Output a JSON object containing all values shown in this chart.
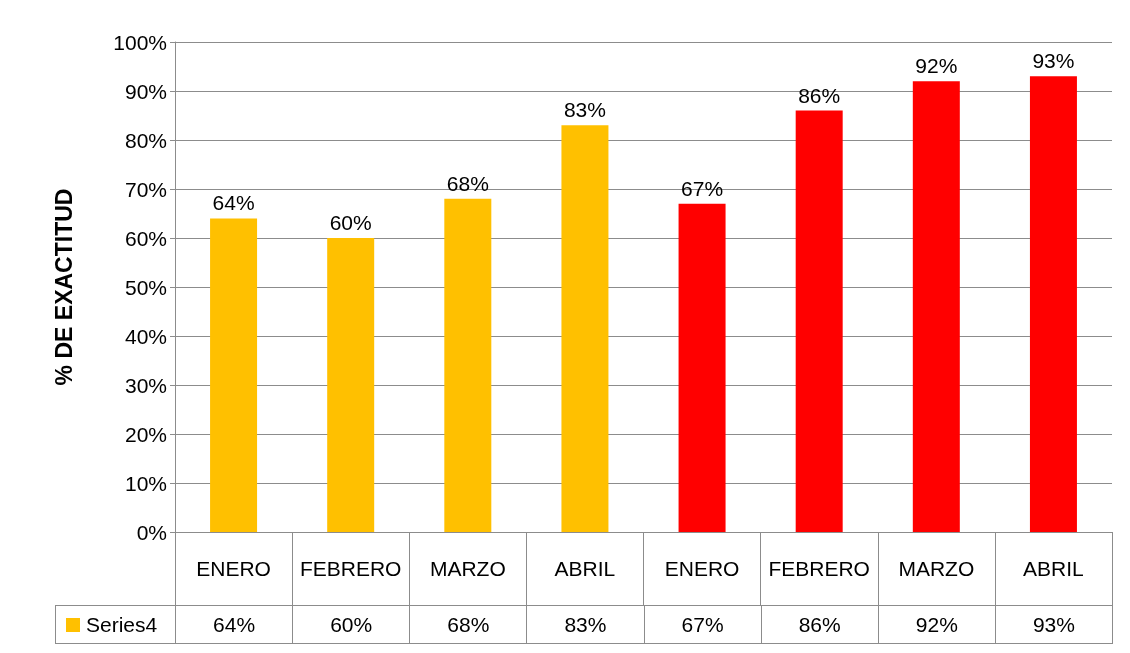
{
  "chart_data": {
    "type": "bar",
    "ylabel": "% DE EXACTITUD",
    "categories": [
      "ENERO",
      "FEBRERO",
      "MARZO",
      "ABRIL",
      "ENERO",
      "FEBRERO",
      "MARZO",
      "ABRIL"
    ],
    "series": [
      {
        "name": "Series4",
        "colors": [
          "#ffc000",
          "#ffc000",
          "#ffc000",
          "#ffc000",
          "#ff0000",
          "#ff0000",
          "#ff0000",
          "#ff0000"
        ],
        "values": [
          64,
          60,
          68,
          83,
          67,
          86,
          92,
          93
        ],
        "value_labels": [
          "64%",
          "60%",
          "68%",
          "83%",
          "67%",
          "86%",
          "92%",
          "93%"
        ]
      }
    ],
    "ylim": [
      0,
      100
    ],
    "yticks": [
      {
        "value": 0,
        "label": "0%"
      },
      {
        "value": 10,
        "label": "10%"
      },
      {
        "value": 20,
        "label": "20%"
      },
      {
        "value": 30,
        "label": "30%"
      },
      {
        "value": 40,
        "label": "40%"
      },
      {
        "value": 50,
        "label": "50%"
      },
      {
        "value": 60,
        "label": "60%"
      },
      {
        "value": 70,
        "label": "70%"
      },
      {
        "value": 80,
        "label": "80%"
      },
      {
        "value": 90,
        "label": "90%"
      },
      {
        "value": 100,
        "label": "100%"
      }
    ],
    "grid": "y",
    "legend": "bottom left"
  }
}
